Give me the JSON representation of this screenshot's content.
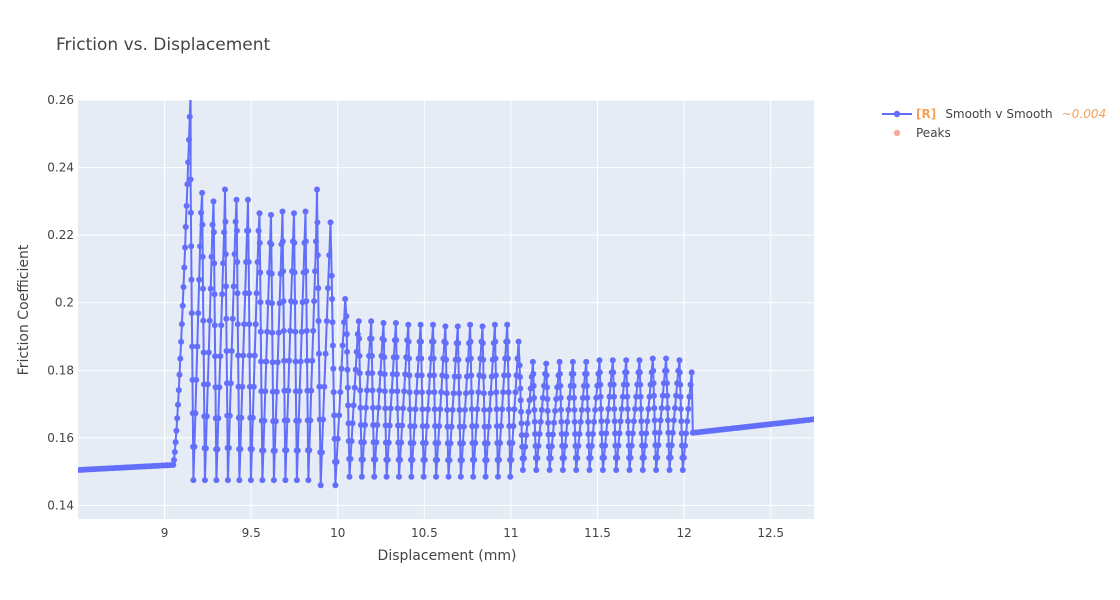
{
  "chart_data": {
    "type": "line",
    "title": "Friction vs. Displacement",
    "xlabel": "Displacement (mm)",
    "ylabel": "Friction Coefficient",
    "xlim": [
      8.5,
      12.75
    ],
    "ylim": [
      0.136,
      0.26
    ],
    "xticks": [
      9,
      9.5,
      10,
      10.5,
      11,
      11.5,
      12,
      12.5
    ],
    "xtick_labels": [
      "9",
      "9.5",
      "10",
      "10.5",
      "11",
      "11.5",
      "12",
      "12.5"
    ],
    "yticks": [
      0.14,
      0.16,
      0.18,
      0.2,
      0.22,
      0.24,
      0.26
    ],
    "ytick_labels": [
      "0.14",
      "0.16",
      "0.18",
      "0.2",
      "0.22",
      "0.24",
      "0.26"
    ],
    "grid": true,
    "legend_position": "top-right",
    "colors": {
      "series": "#636efa",
      "peaks": "#ef553b",
      "tag": "#f4a259",
      "plot_bg": "#e5ecf6",
      "grid": "#ffffff",
      "text": "#444444",
      "muted": "#9a9a9a"
    },
    "legend": [
      {
        "tag": "[R]",
        "name": "Smooth v Smooth",
        "note": "~0.004"
      },
      {
        "name": "Peaks"
      }
    ],
    "segments": [
      {
        "x_start": 8.5,
        "x_end": 9.05,
        "y_start": 0.1505,
        "y_end": 0.152,
        "mode": "ramp"
      },
      {
        "x_start": 9.05,
        "x_end": 9.15,
        "y_start": 0.152,
        "y_end": 0.262,
        "mode": "rise"
      },
      {
        "x_start": 9.15,
        "x_end": 9.88,
        "low": 0.1475,
        "highs": [
          0.2365,
          0.2325,
          0.23,
          0.2335,
          0.2305,
          0.2305,
          0.2265,
          0.226,
          0.227,
          0.2265,
          0.227
        ],
        "mode": "saw"
      },
      {
        "x_start": 9.88,
        "x_end": 10.05,
        "low": 0.146,
        "highs": [
          0.2335,
          0.208
        ],
        "mode": "saw"
      },
      {
        "x_start": 10.05,
        "x_end": 11.05,
        "low": 0.1485,
        "highs": [
          0.196,
          0.1945,
          0.1945,
          0.194,
          0.194,
          0.1935,
          0.1935,
          0.1935,
          0.193,
          0.193,
          0.1935,
          0.193,
          0.1935,
          0.1935
        ],
        "mode": "saw"
      },
      {
        "x_start": 11.05,
        "x_end": 12.05,
        "low": 0.1505,
        "highs": [
          0.1815,
          0.1825,
          0.182,
          0.1825,
          0.1825,
          0.1825,
          0.183,
          0.183,
          0.183,
          0.183,
          0.1835,
          0.1835,
          0.183
        ],
        "mode": "saw"
      },
      {
        "x_start": 12.05,
        "x_end": 12.75,
        "y_start": 0.1615,
        "y_end": 0.1655,
        "mode": "ramp"
      }
    ]
  }
}
